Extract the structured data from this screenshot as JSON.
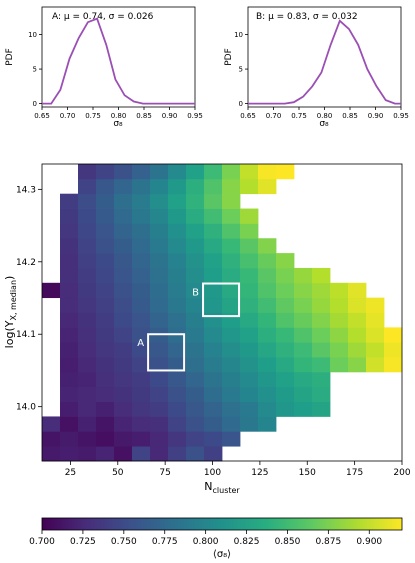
{
  "chart_data": [
    {
      "type": "line",
      "panel": "A",
      "title": "A:  μ = 0.74, σ = 0.026",
      "xlabel": "σ₈",
      "ylabel": "PDF",
      "xlim": [
        0.65,
        0.95
      ],
      "ylim": [
        -0.5,
        14
      ],
      "xticks": [
        "0.65",
        "0.70",
        "0.75",
        "0.80",
        "0.85",
        "0.90",
        "0.95"
      ],
      "yticks": [
        "0",
        "5",
        "10"
      ],
      "color": "#9b4fb5",
      "x": [
        0.65,
        0.668,
        0.686,
        0.704,
        0.722,
        0.74,
        0.758,
        0.776,
        0.794,
        0.812,
        0.83,
        0.848,
        0.866,
        0.884,
        0.902,
        0.92,
        0.938,
        0.95
      ],
      "y": [
        0.0,
        0.0,
        2.0,
        6.5,
        9.5,
        11.8,
        12.3,
        8.5,
        3.5,
        1.2,
        0.3,
        0.0,
        0.0,
        0.0,
        0.0,
        0.0,
        0.0,
        0.0
      ]
    },
    {
      "type": "line",
      "panel": "B",
      "title": "B:  μ = 0.83, σ = 0.032",
      "xlabel": "σ₈",
      "ylabel": "PDF",
      "xlim": [
        0.65,
        0.95
      ],
      "ylim": [
        -0.5,
        14
      ],
      "xticks": [
        "0.65",
        "0.70",
        "0.75",
        "0.80",
        "0.85",
        "0.90",
        "0.95"
      ],
      "yticks": [
        "0",
        "5",
        "10"
      ],
      "color": "#9b4fb5",
      "x": [
        0.65,
        0.668,
        0.686,
        0.704,
        0.722,
        0.74,
        0.758,
        0.776,
        0.794,
        0.812,
        0.83,
        0.848,
        0.866,
        0.884,
        0.902,
        0.92,
        0.938,
        0.95
      ],
      "y": [
        0.0,
        0.0,
        0.0,
        0.0,
        0.0,
        0.2,
        1.0,
        2.5,
        4.5,
        8.5,
        12.0,
        10.8,
        8.5,
        5.0,
        2.5,
        0.5,
        0.0,
        0.0
      ]
    },
    {
      "type": "heatmap",
      "xlabel": "N_cluster",
      "ylabel": "log(Y_X, median)",
      "xlim": [
        10,
        200
      ],
      "ylim": [
        13.925,
        14.335
      ],
      "xticks": [
        25,
        50,
        75,
        100,
        125,
        150,
        175,
        200
      ],
      "yticks": [
        14.0,
        14.1,
        14.2,
        14.3
      ],
      "x0": 10,
      "dx": 9.5,
      "y0": 13.925,
      "dy": 0.0205,
      "colorbar": {
        "label": "⟨σ₈⟩",
        "min": 0.7,
        "max": 0.92,
        "ticks": [
          "0.700",
          "0.725",
          "0.750",
          "0.775",
          "0.800",
          "0.825",
          "0.850",
          "0.875",
          "0.900"
        ]
      },
      "rows": [
        [
          0.715,
          0.718,
          0.716,
          0.722,
          0.71,
          0.745,
          0.725,
          0.742,
          0.755,
          0.742,
          null,
          null,
          null,
          null,
          null,
          null,
          null,
          null,
          null,
          null
        ],
        [
          0.712,
          0.716,
          0.712,
          0.708,
          0.715,
          0.718,
          0.725,
          0.735,
          0.745,
          0.75,
          0.758,
          null,
          null,
          null,
          null,
          null,
          null,
          null,
          null,
          null
        ],
        [
          0.728,
          0.71,
          0.72,
          0.712,
          0.722,
          0.728,
          0.73,
          0.745,
          0.755,
          0.765,
          0.775,
          0.788,
          0.8,
          null,
          null,
          null,
          null,
          null,
          null,
          null
        ],
        [
          null,
          0.718,
          0.725,
          0.72,
          0.728,
          0.735,
          0.74,
          0.75,
          0.76,
          0.77,
          0.782,
          0.79,
          0.805,
          0.815,
          0.822,
          0.828,
          null,
          null,
          null,
          null
        ],
        [
          null,
          0.722,
          0.725,
          0.728,
          0.732,
          0.738,
          0.745,
          0.755,
          0.765,
          0.778,
          0.79,
          0.8,
          0.81,
          0.82,
          0.828,
          0.835,
          null,
          null,
          null,
          null
        ],
        [
          null,
          0.72,
          0.722,
          0.73,
          0.735,
          0.74,
          0.75,
          0.76,
          0.772,
          0.785,
          0.795,
          0.805,
          0.815,
          0.825,
          0.832,
          0.838,
          null,
          null,
          null,
          null
        ],
        [
          null,
          0.718,
          0.725,
          0.732,
          0.738,
          0.745,
          0.755,
          0.765,
          0.78,
          0.792,
          0.802,
          0.812,
          0.822,
          0.832,
          0.845,
          0.85,
          0.87,
          0.88,
          0.905,
          0.918
        ],
        [
          null,
          0.72,
          0.728,
          0.735,
          0.74,
          0.75,
          0.76,
          0.772,
          0.785,
          0.798,
          0.808,
          0.818,
          0.83,
          0.84,
          0.85,
          0.862,
          0.875,
          0.888,
          0.9,
          0.915
        ],
        [
          null,
          0.722,
          0.73,
          0.738,
          0.745,
          0.755,
          0.765,
          0.778,
          0.79,
          0.805,
          0.815,
          0.825,
          0.838,
          0.848,
          0.858,
          0.87,
          0.882,
          0.895,
          0.908,
          0.92
        ],
        [
          null,
          0.725,
          0.732,
          0.74,
          0.75,
          0.758,
          0.77,
          0.782,
          0.795,
          0.81,
          0.822,
          0.832,
          0.845,
          0.858,
          0.868,
          0.878,
          0.89,
          0.9,
          0.912,
          null
        ],
        [
          null,
          0.728,
          0.735,
          0.742,
          0.752,
          0.762,
          0.775,
          0.788,
          0.8,
          0.815,
          0.828,
          0.84,
          0.852,
          0.865,
          0.875,
          0.885,
          0.895,
          0.908,
          0.915,
          null
        ],
        [
          0.705,
          0.728,
          0.738,
          0.745,
          0.755,
          0.765,
          0.778,
          0.792,
          0.805,
          0.818,
          0.832,
          0.845,
          0.858,
          0.87,
          0.88,
          0.888,
          0.898,
          0.91,
          null,
          null
        ],
        [
          null,
          0.73,
          0.74,
          0.748,
          0.758,
          0.768,
          0.782,
          0.795,
          0.808,
          0.822,
          0.835,
          0.848,
          0.862,
          0.875,
          0.885,
          0.895,
          null,
          null,
          null,
          null
        ],
        [
          null,
          0.73,
          0.742,
          0.75,
          0.76,
          0.772,
          0.785,
          0.798,
          0.812,
          0.825,
          0.84,
          0.855,
          0.868,
          0.88,
          null,
          null,
          null,
          null,
          null,
          null
        ],
        [
          null,
          0.732,
          0.745,
          0.755,
          0.765,
          0.775,
          0.79,
          0.805,
          0.818,
          0.832,
          0.848,
          0.862,
          0.878,
          null,
          null,
          null,
          null,
          null,
          null,
          null
        ],
        [
          null,
          0.735,
          0.748,
          0.758,
          0.77,
          0.78,
          0.795,
          0.81,
          0.825,
          0.84,
          0.858,
          0.875,
          null,
          null,
          null,
          null,
          null,
          null,
          null,
          null
        ],
        [
          null,
          0.738,
          0.75,
          0.762,
          0.775,
          0.788,
          0.802,
          0.818,
          0.835,
          0.852,
          0.87,
          0.888,
          null,
          null,
          null,
          null,
          null,
          null,
          null,
          null
        ],
        [
          null,
          0.74,
          0.752,
          0.765,
          0.78,
          0.792,
          0.808,
          0.825,
          0.842,
          0.862,
          0.88,
          null,
          null,
          null,
          null,
          null,
          null,
          null,
          null,
          null
        ],
        [
          null,
          null,
          0.745,
          0.76,
          0.772,
          0.785,
          0.8,
          0.818,
          0.838,
          0.858,
          0.88,
          0.895,
          0.91,
          null,
          null,
          null,
          null,
          null,
          null,
          null
        ],
        [
          null,
          null,
          0.735,
          0.745,
          0.755,
          0.768,
          0.785,
          0.805,
          0.825,
          0.85,
          0.875,
          0.9,
          0.918,
          0.92,
          null,
          null,
          null,
          null,
          null,
          null
        ]
      ],
      "boxes": [
        {
          "label": "A",
          "x": [
            66,
            85
          ],
          "y": [
            14.05,
            14.1
          ]
        },
        {
          "label": "B",
          "x": [
            95,
            114
          ],
          "y": [
            14.125,
            14.17
          ]
        }
      ]
    }
  ]
}
